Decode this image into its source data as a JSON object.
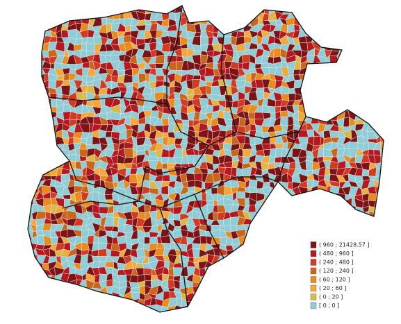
{
  "legend": {
    "items": [
      {
        "label": "( 960 ; 21428.57 ]",
        "color": "#7d1315"
      },
      {
        "label": "( 480 ; 960 ]",
        "color": "#b3191f"
      },
      {
        "label": "( 240 ; 480 ]",
        "color": "#d23a22"
      },
      {
        "label": "( 120 ; 240 ]",
        "color": "#c9661c"
      },
      {
        "label": "( 60 ; 120 ]",
        "color": "#ea8b1e"
      },
      {
        "label": "( 20 ; 60 ]",
        "color": "#f2a83a"
      },
      {
        "label": "( 0 ; 20 ]",
        "color": "#dcb84a"
      },
      {
        "label": "[ 0 ; 0 ]",
        "color": "#8ecdd5"
      }
    ]
  }
}
